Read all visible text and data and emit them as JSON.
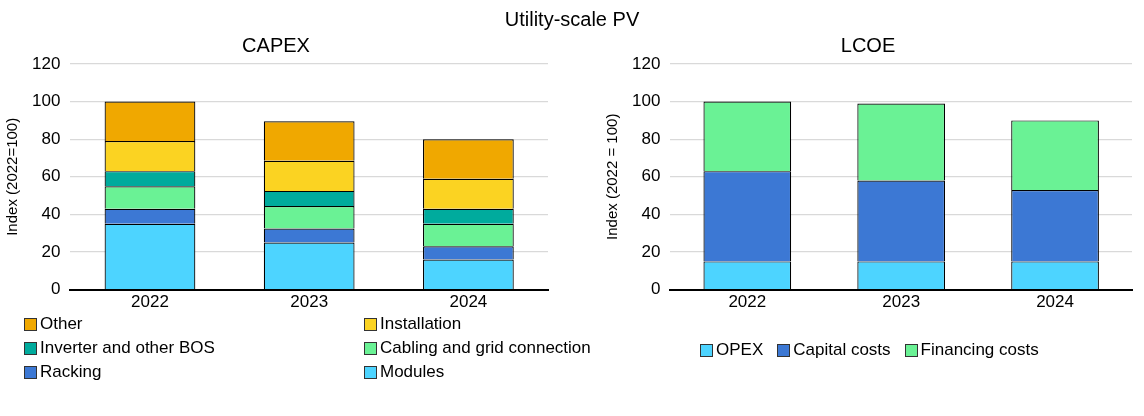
{
  "chart_data": [
    {
      "type": "other",
      "title": "Utility-scale PV"
    },
    {
      "type": "bar",
      "title": "CAPEX",
      "ylabel": "Index (2022=100)",
      "categories": [
        "2022",
        "2023",
        "2024"
      ],
      "stacked": true,
      "ylim": [
        0,
        120
      ],
      "yticks": [
        0,
        20,
        40,
        60,
        80,
        100,
        120
      ],
      "grid": "y",
      "legend": "bottom",
      "series": [
        {
          "name": "Modules",
          "color": "#4dd4ff",
          "values": [
            35,
            25,
            16
          ]
        },
        {
          "name": "Racking",
          "color": "#3c78d4",
          "values": [
            8,
            7.5,
            7
          ]
        },
        {
          "name": "Cabling and grid connection",
          "color": "#6af295",
          "values": [
            12,
            12,
            12
          ]
        },
        {
          "name": "Inverter and other BOS",
          "color": "#00ab9d",
          "values": [
            8,
            8,
            8
          ]
        },
        {
          "name": "Installation",
          "color": "#fbd322",
          "values": [
            16,
            16,
            16
          ]
        },
        {
          "name": "Other",
          "color": "#f0a800",
          "values": [
            21,
            21,
            21
          ]
        }
      ]
    },
    {
      "type": "bar",
      "title": "LCOE",
      "ylabel": "Index (2022 = 100)",
      "categories": [
        "2022",
        "2023",
        "2024"
      ],
      "stacked": true,
      "ylim": [
        0,
        120
      ],
      "yticks": [
        0,
        20,
        40,
        60,
        80,
        100,
        120
      ],
      "grid": "y",
      "legend": "bottom",
      "series": [
        {
          "name": "OPEX",
          "color": "#4dd4ff",
          "values": [
            15,
            15,
            15
          ]
        },
        {
          "name": "Capital costs",
          "color": "#3c78d4",
          "values": [
            48,
            43,
            38
          ]
        },
        {
          "name": "Financing costs",
          "color": "#6af295",
          "values": [
            37,
            41,
            37
          ]
        }
      ]
    }
  ]
}
